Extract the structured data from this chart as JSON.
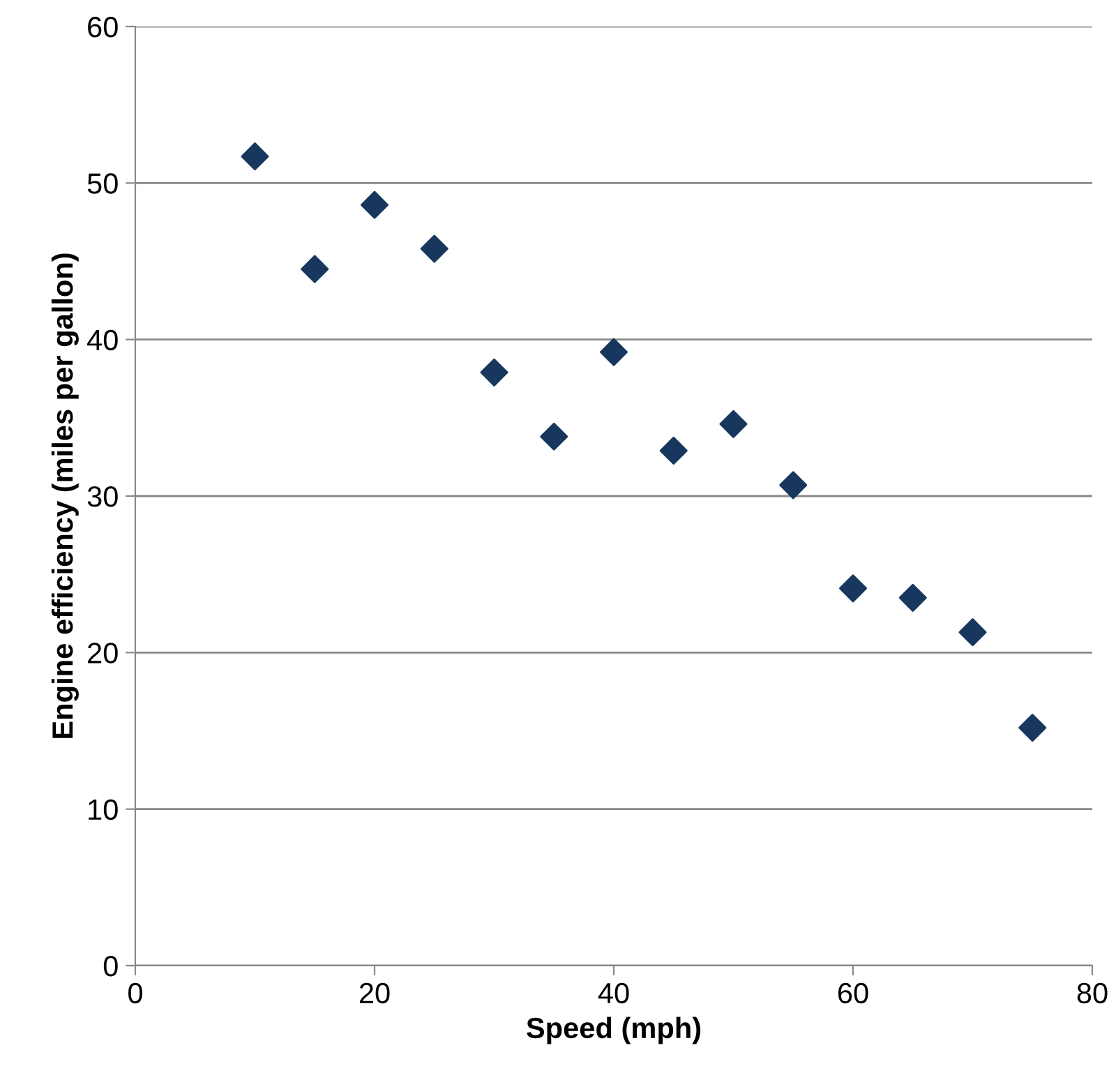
{
  "chart_data": {
    "type": "scatter",
    "xlabel": "Speed (mph)",
    "ylabel": "Engine efficiency (miles per gallon)",
    "x": [
      10,
      15,
      20,
      25,
      30,
      35,
      40,
      45,
      50,
      55,
      60,
      65,
      70,
      75
    ],
    "series": [
      {
        "color": "#17375e",
        "values": [
          51.7,
          44.5,
          48.6,
          45.8,
          37.9,
          33.8,
          39.2,
          32.9,
          34.6,
          30.7,
          24.1,
          23.5,
          21.3,
          15.2
        ]
      }
    ],
    "xlim": [
      0,
      80
    ],
    "xticks": [
      0,
      20,
      40,
      60,
      80
    ],
    "ylim": [
      0,
      60
    ],
    "yticks": [
      0,
      10,
      20,
      30,
      40,
      50,
      60
    ],
    "grid": "y",
    "marker": "diamond"
  }
}
